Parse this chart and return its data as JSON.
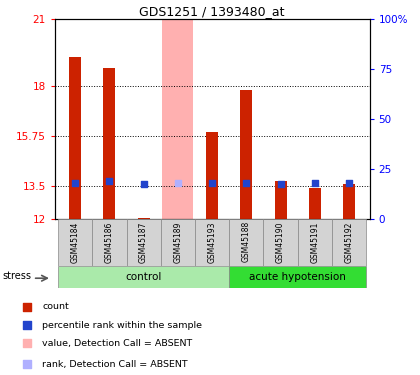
{
  "title": "GDS1251 / 1393480_at",
  "samples": [
    "GSM45184",
    "GSM45186",
    "GSM45187",
    "GSM45189",
    "GSM45193",
    "GSM45188",
    "GSM45190",
    "GSM45191",
    "GSM45192"
  ],
  "red_values": [
    19.3,
    18.8,
    12.05,
    12.0,
    15.9,
    17.8,
    13.7,
    13.4,
    13.6
  ],
  "blue_values": [
    13.65,
    13.72,
    13.57,
    13.65,
    13.62,
    13.65,
    13.58,
    13.65,
    13.62
  ],
  "absent_bar_idx": 3,
  "absent_bar_val": 21.0,
  "absent_rank_val": 13.65,
  "ylim": [
    12,
    21
  ],
  "yticks": [
    12,
    13.5,
    15.75,
    18,
    21
  ],
  "ytick_labels": [
    "12",
    "13.5",
    "15.75",
    "18",
    "21"
  ],
  "right_yticks": [
    0,
    25,
    50,
    75,
    100
  ],
  "right_ytick_labels": [
    "0",
    "25",
    "50",
    "75",
    "100%"
  ],
  "ctrl_label": "control",
  "ah_label": "acute hypotension",
  "stress_label": "stress",
  "bar_width": 0.35,
  "absent_bar_width": 0.9,
  "red_color": "#cc2200",
  "blue_color": "#2244cc",
  "absent_bar_color": "#ffb0b0",
  "absent_rank_color": "#b0b0ff",
  "tick_label_bg": "#d3d3d3",
  "ctrl_color": "#aaeaaa",
  "ah_color": "#33dd33",
  "blue_square_size": 25,
  "legend_items": [
    {
      "color": "#cc2200",
      "label": "count"
    },
    {
      "color": "#2244cc",
      "label": "percentile rank within the sample"
    },
    {
      "color": "#ffb0b0",
      "label": "value, Detection Call = ABSENT"
    },
    {
      "color": "#b0b0ff",
      "label": "rank, Detection Call = ABSENT"
    }
  ]
}
